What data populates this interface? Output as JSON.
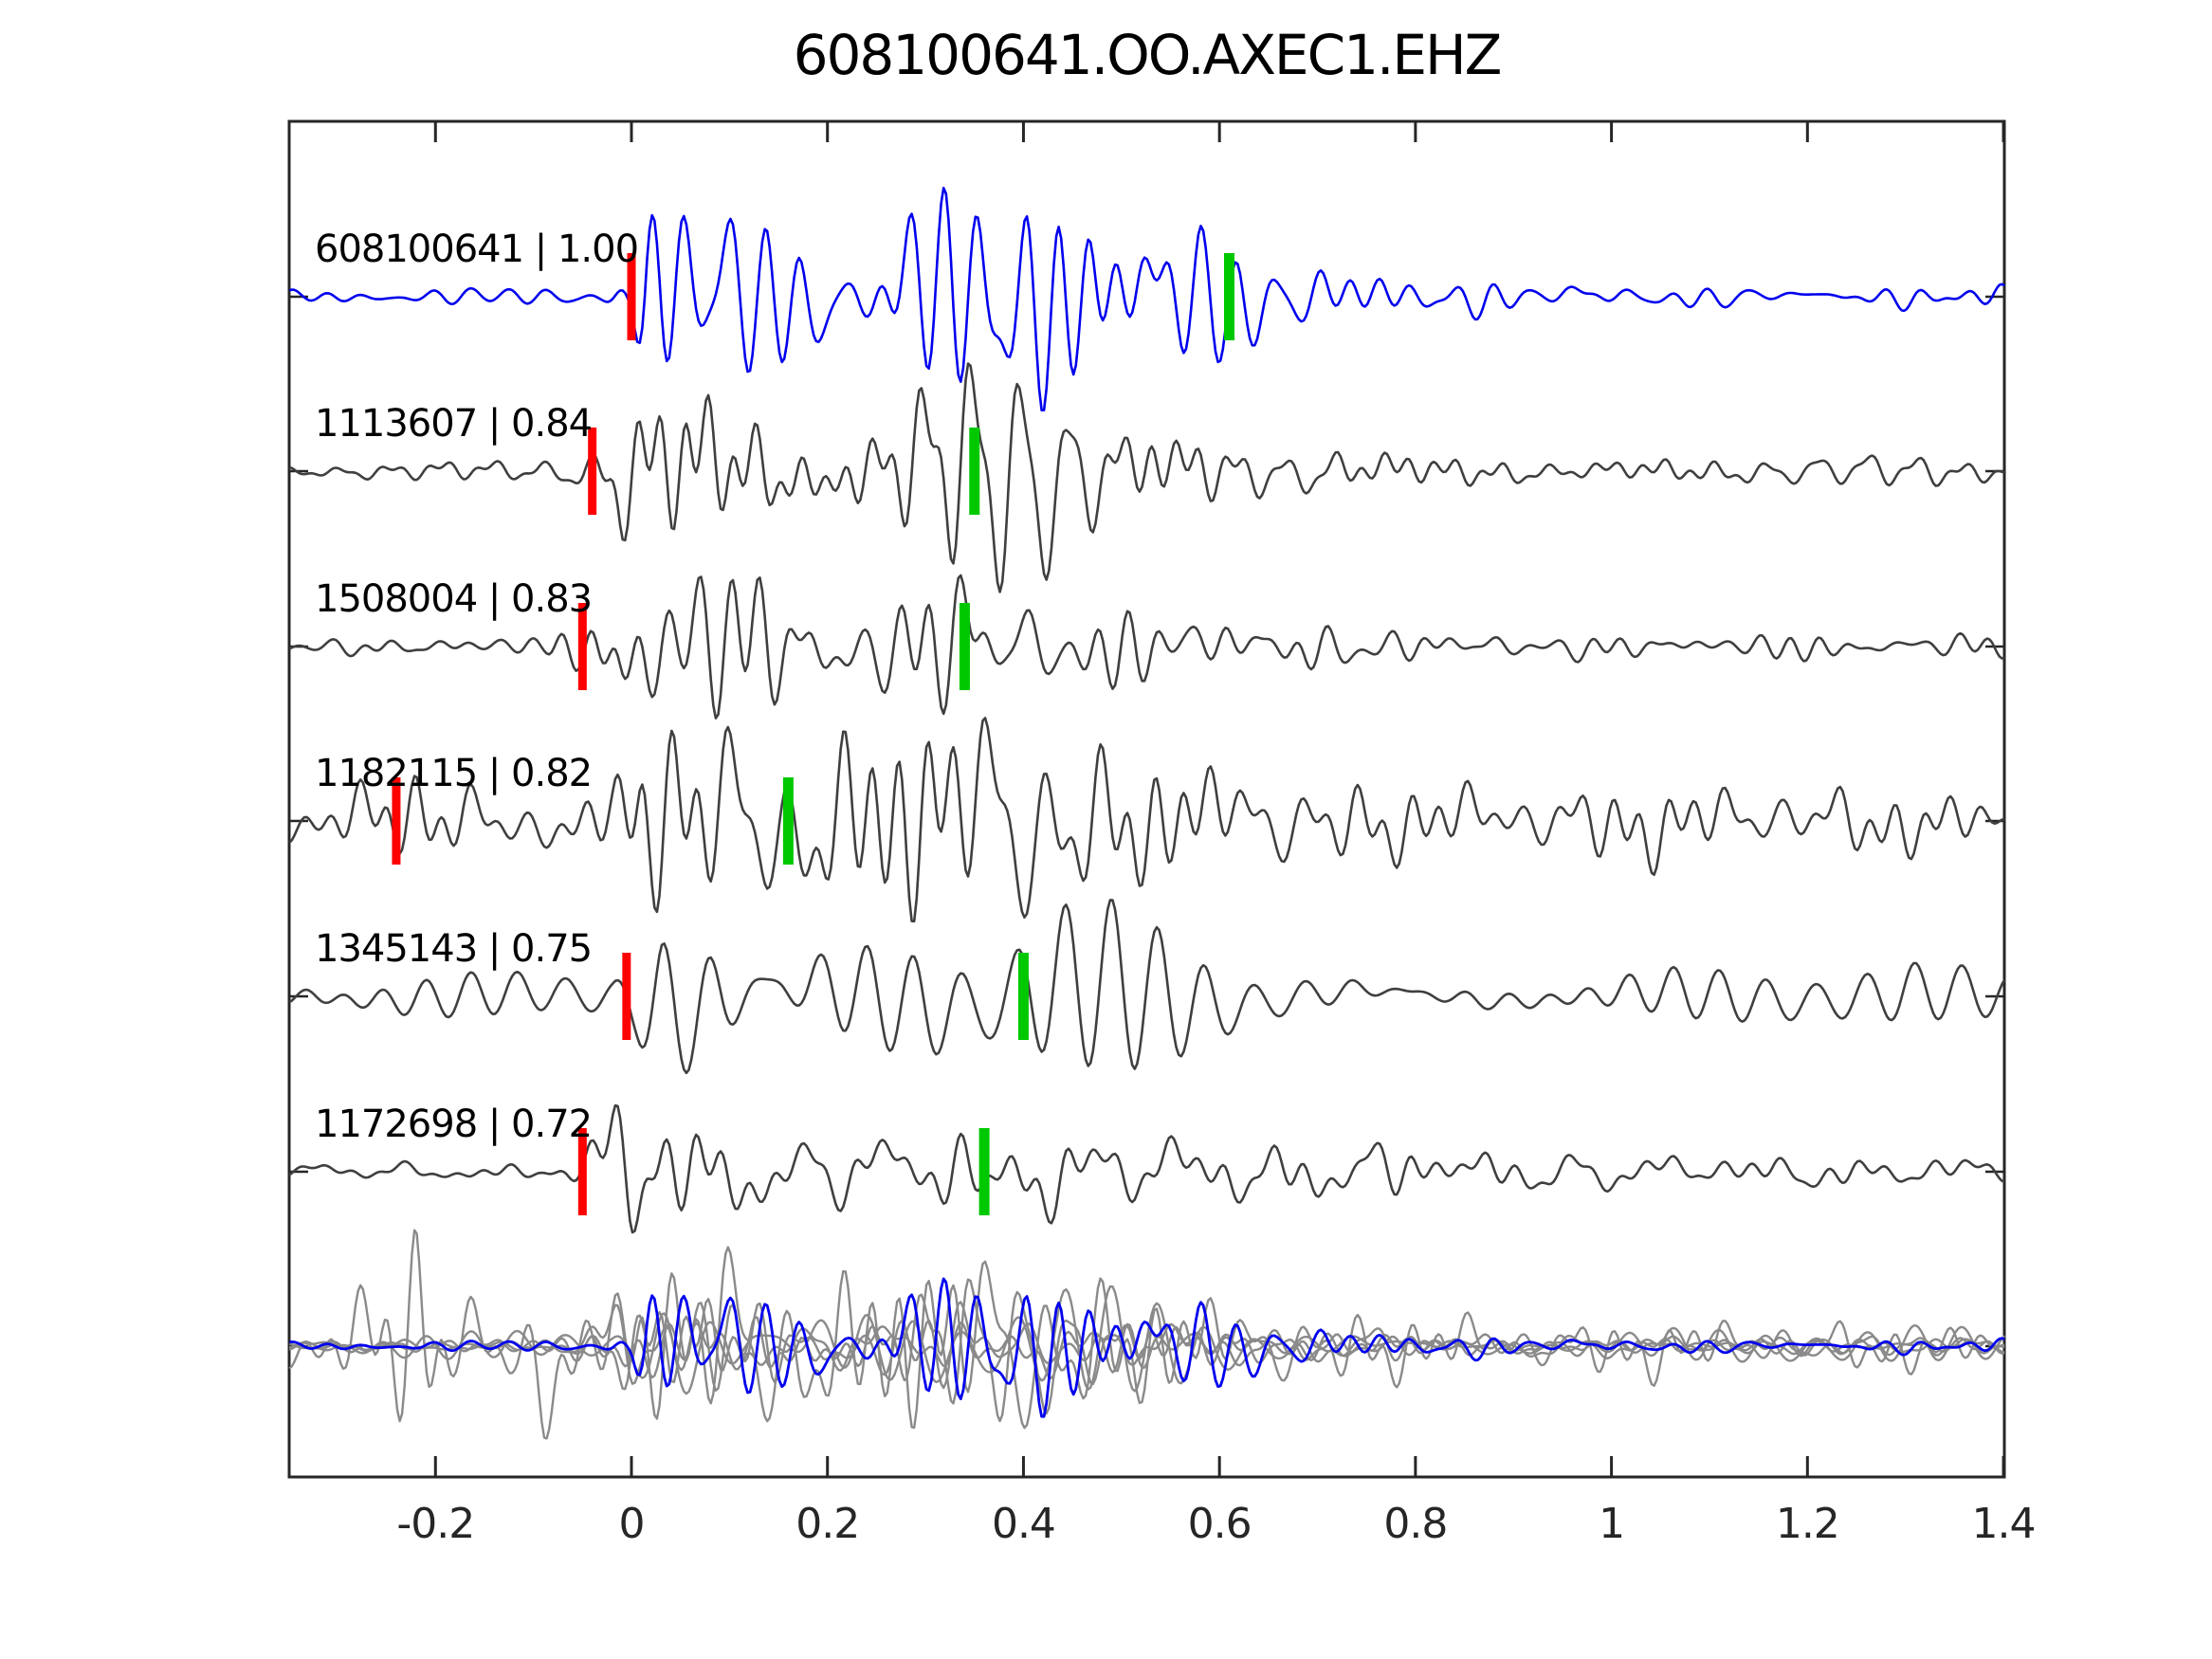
{
  "title": "608100641.OO.AXEC1.EHZ",
  "colors": {
    "template_trace": "#0000ee",
    "detection_trace": "#3f3f3f",
    "overlay_gray": "#8a8a8a",
    "pick_red": "#ff0000",
    "pick_green": "#00c800",
    "axis": "#262626",
    "background": "#ffffff"
  },
  "axis": {
    "tick_labels": [
      "-0.2",
      "0",
      "0.2",
      "0.4",
      "0.6",
      "0.8",
      "1",
      "1.2",
      "1.4"
    ],
    "tick_values": [
      -0.2,
      0,
      0.2,
      0.4,
      0.6,
      0.8,
      1.0,
      1.2,
      1.4
    ],
    "xlim": [
      -0.349,
      1.401
    ]
  },
  "chart_data": {
    "type": "line",
    "title": "608100641.OO.AXEC1.EHZ",
    "xlabel": "",
    "ylabel": "",
    "xlim": [
      -0.349,
      1.401
    ],
    "x_ticks": [
      -0.2,
      0,
      0.2,
      0.4,
      0.6,
      0.8,
      1.0,
      1.2,
      1.4
    ],
    "grid": false,
    "legend": false,
    "traces": [
      {
        "id": "608100641",
        "correlation": "1.00",
        "label": "608100641 | 1.00",
        "color": "#0000ee",
        "red_pick_t": 0.0,
        "green_pick_t": 0.61,
        "freq": 30,
        "band": 0.5,
        "seed": 42,
        "envelope": [
          [
            -0.35,
            0.07
          ],
          [
            -0.03,
            0.08
          ],
          [
            0.0,
            0.2
          ],
          [
            0.015,
            0.95
          ],
          [
            0.03,
            1.0
          ],
          [
            0.08,
            0.8
          ],
          [
            0.13,
            0.6
          ],
          [
            0.2,
            0.65
          ],
          [
            0.27,
            0.85
          ],
          [
            0.33,
            0.95
          ],
          [
            0.42,
            0.85
          ],
          [
            0.5,
            0.8
          ],
          [
            0.58,
            0.75
          ],
          [
            0.65,
            0.5
          ],
          [
            0.72,
            0.3
          ],
          [
            0.8,
            0.18
          ],
          [
            0.9,
            0.22
          ],
          [
            1.0,
            0.15
          ],
          [
            1.1,
            0.13
          ],
          [
            1.25,
            0.12
          ],
          [
            1.41,
            0.1
          ]
        ]
      },
      {
        "id": "1113607",
        "correlation": "0.84",
        "label": "1113607 | 0.84",
        "color": "#3f3f3f",
        "red_pick_t": -0.04,
        "green_pick_t": 0.35,
        "freq": 28,
        "band": 0.55,
        "seed": 7,
        "envelope": [
          [
            -0.35,
            0.08
          ],
          [
            -0.12,
            0.1
          ],
          [
            -0.06,
            0.15
          ],
          [
            -0.04,
            0.3
          ],
          [
            -0.01,
            0.9
          ],
          [
            0.04,
            1.0
          ],
          [
            0.1,
            0.75
          ],
          [
            0.17,
            0.62
          ],
          [
            0.25,
            0.6
          ],
          [
            0.33,
            0.8
          ],
          [
            0.4,
            0.85
          ],
          [
            0.48,
            0.6
          ],
          [
            0.57,
            0.4
          ],
          [
            0.65,
            0.22
          ],
          [
            0.72,
            0.3
          ],
          [
            0.82,
            0.18
          ],
          [
            0.95,
            0.15
          ],
          [
            1.1,
            0.13
          ],
          [
            1.25,
            0.12
          ],
          [
            1.41,
            0.11
          ]
        ]
      },
      {
        "id": "1508004",
        "correlation": "0.83",
        "label": "1508004 | 0.83",
        "color": "#3f3f3f",
        "red_pick_t": -0.05,
        "green_pick_t": 0.34,
        "freq": 27,
        "band": 0.5,
        "seed": 13,
        "envelope": [
          [
            -0.35,
            0.07
          ],
          [
            -0.09,
            0.08
          ],
          [
            -0.05,
            0.25
          ],
          [
            -0.01,
            0.85
          ],
          [
            0.04,
            0.9
          ],
          [
            0.1,
            0.6
          ],
          [
            0.18,
            0.5
          ],
          [
            0.26,
            0.45
          ],
          [
            0.34,
            0.55
          ],
          [
            0.42,
            0.5
          ],
          [
            0.52,
            0.4
          ],
          [
            0.6,
            0.3
          ],
          [
            0.68,
            0.28
          ],
          [
            0.78,
            0.15
          ],
          [
            0.9,
            0.1
          ],
          [
            1.05,
            0.1
          ],
          [
            1.2,
            0.12
          ],
          [
            1.41,
            0.09
          ]
        ]
      },
      {
        "id": "1182115",
        "correlation": "0.82",
        "label": "1182115 | 0.82",
        "color": "#3f3f3f",
        "red_pick_t": -0.24,
        "green_pick_t": 0.16,
        "freq": 24,
        "band": 0.7,
        "seed": 99,
        "envelope": [
          [
            -0.35,
            0.22
          ],
          [
            -0.27,
            0.3
          ],
          [
            -0.22,
            0.38
          ],
          [
            -0.16,
            0.28
          ],
          [
            -0.08,
            0.3
          ],
          [
            -0.02,
            0.35
          ],
          [
            0.01,
            0.8
          ],
          [
            0.06,
            0.85
          ],
          [
            0.12,
            0.6
          ],
          [
            0.2,
            0.9
          ],
          [
            0.28,
            1.0
          ],
          [
            0.38,
            0.9
          ],
          [
            0.48,
            0.65
          ],
          [
            0.58,
            0.5
          ],
          [
            0.68,
            0.4
          ],
          [
            0.78,
            0.32
          ],
          [
            0.9,
            0.32
          ],
          [
            1.0,
            0.38
          ],
          [
            1.1,
            0.32
          ],
          [
            1.25,
            0.3
          ],
          [
            1.41,
            0.26
          ]
        ]
      },
      {
        "id": "1345143",
        "correlation": "0.75",
        "label": "1345143 | 0.75",
        "color": "#3f3f3f",
        "red_pick_t": -0.005,
        "green_pick_t": 0.4,
        "freq": 23,
        "band": 0.22,
        "seed": 5,
        "envelope": [
          [
            -0.35,
            0.22
          ],
          [
            -0.1,
            0.23
          ],
          [
            -0.02,
            0.22
          ],
          [
            0.005,
            0.45
          ],
          [
            0.03,
            0.95
          ],
          [
            0.07,
            0.85
          ],
          [
            0.13,
            0.6
          ],
          [
            0.2,
            0.55
          ],
          [
            0.28,
            0.6
          ],
          [
            0.36,
            0.8
          ],
          [
            0.44,
            0.8
          ],
          [
            0.52,
            0.7
          ],
          [
            0.62,
            0.5
          ],
          [
            0.72,
            0.38
          ],
          [
            0.82,
            0.3
          ],
          [
            0.92,
            0.27
          ],
          [
            1.02,
            0.3
          ],
          [
            1.15,
            0.27
          ],
          [
            1.3,
            0.3
          ],
          [
            1.41,
            0.24
          ]
        ]
      },
      {
        "id": "1172698",
        "correlation": "0.72",
        "label": "1172698 | 0.72",
        "color": "#3f3f3f",
        "red_pick_t": -0.05,
        "green_pick_t": 0.36,
        "freq": 24,
        "band": 0.6,
        "seed": 21,
        "envelope": [
          [
            -0.35,
            0.07
          ],
          [
            -0.09,
            0.08
          ],
          [
            -0.05,
            0.22
          ],
          [
            0.0,
            0.9
          ],
          [
            0.03,
            0.85
          ],
          [
            0.1,
            0.5
          ],
          [
            0.17,
            0.28
          ],
          [
            0.25,
            0.3
          ],
          [
            0.33,
            0.4
          ],
          [
            0.4,
            0.45
          ],
          [
            0.48,
            0.38
          ],
          [
            0.56,
            0.3
          ],
          [
            0.64,
            0.35
          ],
          [
            0.72,
            0.25
          ],
          [
            0.8,
            0.3
          ],
          [
            0.92,
            0.18
          ],
          [
            1.05,
            0.15
          ],
          [
            1.2,
            0.17
          ],
          [
            1.41,
            0.12
          ]
        ]
      }
    ],
    "overlay": {
      "description": "all detections aligned and superimposed with template",
      "gray_color": "#8a8a8a",
      "template_color": "#0000ee",
      "members": [
        {
          "trace": 1,
          "scale": 0.62
        },
        {
          "trace": 2,
          "scale": 0.62
        },
        {
          "trace": 3,
          "scale": 0.9,
          "envelope": [
            [
              -0.35,
              0.25
            ],
            [
              -0.27,
              0.5
            ],
            [
              -0.22,
              1.1
            ],
            [
              -0.18,
              0.4
            ],
            [
              -0.12,
              0.5
            ],
            [
              -0.09,
              1.2
            ],
            [
              -0.04,
              0.4
            ],
            [
              0.01,
              0.7
            ],
            [
              0.08,
              0.8
            ],
            [
              0.2,
              0.85
            ],
            [
              0.3,
              0.9
            ],
            [
              0.4,
              0.8
            ],
            [
              0.5,
              0.6
            ],
            [
              0.65,
              0.4
            ],
            [
              0.8,
              0.3
            ],
            [
              1.0,
              0.3
            ],
            [
              1.2,
              0.25
            ],
            [
              1.41,
              0.22
            ]
          ]
        },
        {
          "trace": 4,
          "scale": 0.62
        },
        {
          "trace": 5,
          "scale": 0.62
        },
        {
          "trace": 0,
          "scale": 0.62,
          "is_template": true
        }
      ]
    }
  }
}
